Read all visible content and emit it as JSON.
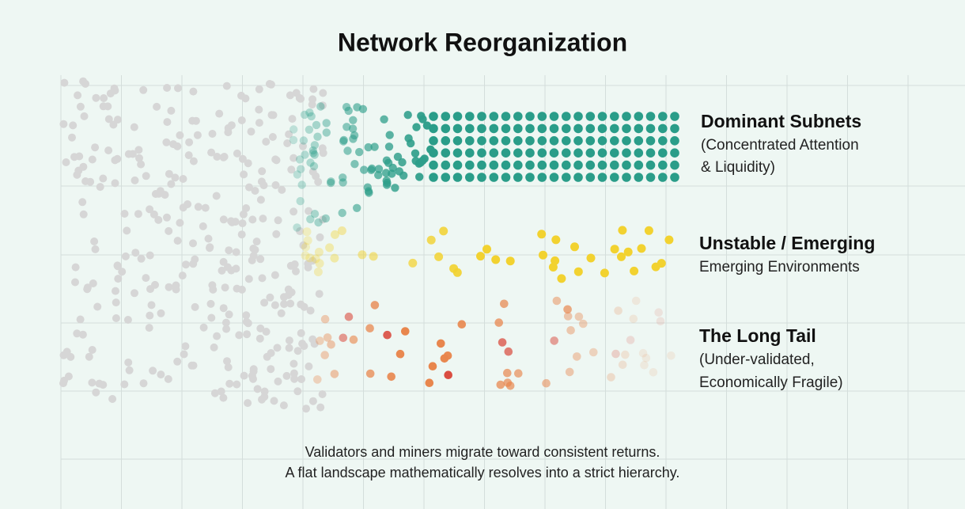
{
  "title": "Network Reorganization",
  "groups": [
    {
      "name": "Dominant Subnets",
      "description": [
        "(Concentrated Attention",
        "& Liquidity)"
      ]
    },
    {
      "name": "Unstable / Emerging",
      "description": [
        "Emerging Environments"
      ]
    },
    {
      "name": "The Long Tail",
      "description": [
        "(Under-validated,",
        "Economically Fragile)"
      ]
    }
  ],
  "caption": [
    "Validators and miners migrate toward consistent returns.",
    "A flat landscape mathematically resolves into a strict hierarchy."
  ]
}
